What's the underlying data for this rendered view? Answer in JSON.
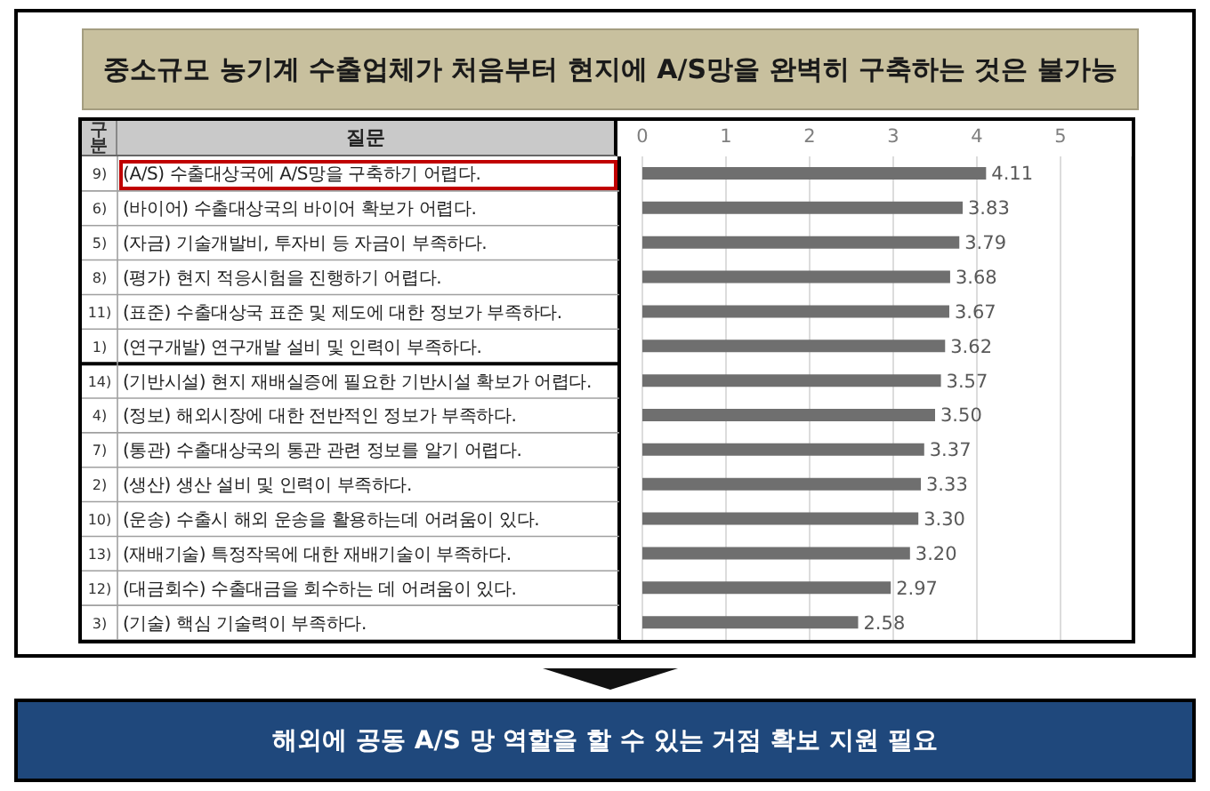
{
  "chart_data": {
    "type": "bar",
    "orientation": "horizontal",
    "title": "중소규모 농기계 수출업체가 처음부터 현지에 A/S망을 완벽히 구축하는 것은 불가능",
    "ylabel": "질문",
    "categories": [
      "(A/S) 수출대상국에 A/S망을 구축하기 어렵다.",
      "(바이어) 수출대상국의 바이어 확보가 어렵다.",
      "(자금) 기술개발비, 투자비 등 자금이 부족하다.",
      "(평가) 현지 적응시험을 진행하기 어렵다.",
      "(표준) 수출대상국 표준 및 제도에 대한 정보가 부족하다.",
      "(연구개발) 연구개발 설비 및 인력이 부족하다.",
      "(기반시설) 현지 재배실증에 필요한 기반시설 확보가 어렵다.",
      "(정보) 해외시장에 대한 전반적인 정보가 부족하다.",
      "(통관) 수출대상국의 통관 관련 정보를 알기 어렵다.",
      "(생산) 생산 설비 및 인력이 부족하다.",
      "(운송) 수출시 해외 운송을 활용하는데 어려움이 있다.",
      "(재배기술) 특정작목에 대한 재배기술이 부족하다.",
      "(대금회수) 수출대금을 회수하는 데 어려움이 있다.",
      "(기술) 핵심 기술력이 부족하다."
    ],
    "values": [
      4.11,
      3.83,
      3.79,
      3.68,
      3.67,
      3.62,
      3.57,
      3.5,
      3.37,
      3.33,
      3.3,
      3.2,
      2.97,
      2.58
    ],
    "value_labels": [
      "4.11",
      "3.83",
      "3.79",
      "3.68",
      "3.67",
      "3.62",
      "3.57",
      "3.50",
      "3.37",
      "3.33",
      "3.30",
      "3.20",
      "2.97",
      "2.58"
    ],
    "color": "#6f6f6f",
    "xlim": [
      0,
      5
    ],
    "xticks": [
      0,
      1,
      2,
      3,
      4,
      5
    ],
    "grid": "x",
    "annotations": [
      "구분",
      "9)",
      "6)",
      "5)",
      "8)",
      "11)",
      "1)",
      "14)",
      "4)",
      "7)",
      "2)",
      "10)",
      "13)",
      "12)",
      "3)",
      "해외에 공동 A/S 망 역할을 할 수 있는 거점 확보 지원 필요"
    ]
  }
}
